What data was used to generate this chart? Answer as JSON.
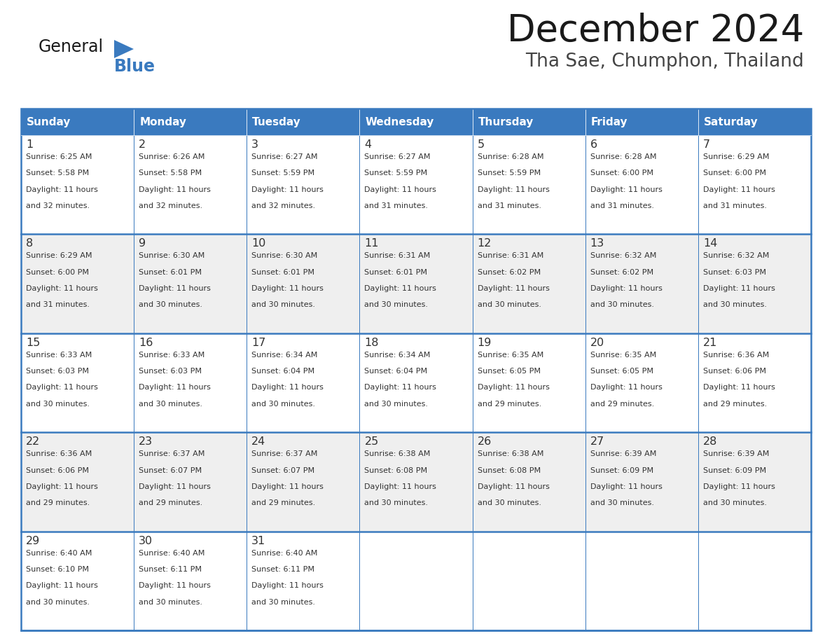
{
  "title": "December 2024",
  "subtitle": "Tha Sae, Chumphon, Thailand",
  "days_of_week": [
    "Sunday",
    "Monday",
    "Tuesday",
    "Wednesday",
    "Thursday",
    "Friday",
    "Saturday"
  ],
  "header_bg": "#3a7abf",
  "header_text": "#ffffff",
  "cell_bg_odd": "#efefef",
  "cell_bg_even": "#ffffff",
  "cell_text": "#333333",
  "border_color": "#3a7abf",
  "title_color": "#1a1a1a",
  "subtitle_color": "#444444",
  "logo_general_color": "#1a1a1a",
  "logo_blue_color": "#3a7abf",
  "logo_triangle_color": "#3a7abf",
  "weeks": [
    [
      {
        "day": 1,
        "sunrise": "6:25 AM",
        "sunset": "5:58 PM",
        "daylight": "11 hours and 32 minutes."
      },
      {
        "day": 2,
        "sunrise": "6:26 AM",
        "sunset": "5:58 PM",
        "daylight": "11 hours and 32 minutes."
      },
      {
        "day": 3,
        "sunrise": "6:27 AM",
        "sunset": "5:59 PM",
        "daylight": "11 hours and 32 minutes."
      },
      {
        "day": 4,
        "sunrise": "6:27 AM",
        "sunset": "5:59 PM",
        "daylight": "11 hours and 31 minutes."
      },
      {
        "day": 5,
        "sunrise": "6:28 AM",
        "sunset": "5:59 PM",
        "daylight": "11 hours and 31 minutes."
      },
      {
        "day": 6,
        "sunrise": "6:28 AM",
        "sunset": "6:00 PM",
        "daylight": "11 hours and 31 minutes."
      },
      {
        "day": 7,
        "sunrise": "6:29 AM",
        "sunset": "6:00 PM",
        "daylight": "11 hours and 31 minutes."
      }
    ],
    [
      {
        "day": 8,
        "sunrise": "6:29 AM",
        "sunset": "6:00 PM",
        "daylight": "11 hours and 31 minutes."
      },
      {
        "day": 9,
        "sunrise": "6:30 AM",
        "sunset": "6:01 PM",
        "daylight": "11 hours and 30 minutes."
      },
      {
        "day": 10,
        "sunrise": "6:30 AM",
        "sunset": "6:01 PM",
        "daylight": "11 hours and 30 minutes."
      },
      {
        "day": 11,
        "sunrise": "6:31 AM",
        "sunset": "6:01 PM",
        "daylight": "11 hours and 30 minutes."
      },
      {
        "day": 12,
        "sunrise": "6:31 AM",
        "sunset": "6:02 PM",
        "daylight": "11 hours and 30 minutes."
      },
      {
        "day": 13,
        "sunrise": "6:32 AM",
        "sunset": "6:02 PM",
        "daylight": "11 hours and 30 minutes."
      },
      {
        "day": 14,
        "sunrise": "6:32 AM",
        "sunset": "6:03 PM",
        "daylight": "11 hours and 30 minutes."
      }
    ],
    [
      {
        "day": 15,
        "sunrise": "6:33 AM",
        "sunset": "6:03 PM",
        "daylight": "11 hours and 30 minutes."
      },
      {
        "day": 16,
        "sunrise": "6:33 AM",
        "sunset": "6:03 PM",
        "daylight": "11 hours and 30 minutes."
      },
      {
        "day": 17,
        "sunrise": "6:34 AM",
        "sunset": "6:04 PM",
        "daylight": "11 hours and 30 minutes."
      },
      {
        "day": 18,
        "sunrise": "6:34 AM",
        "sunset": "6:04 PM",
        "daylight": "11 hours and 30 minutes."
      },
      {
        "day": 19,
        "sunrise": "6:35 AM",
        "sunset": "6:05 PM",
        "daylight": "11 hours and 29 minutes."
      },
      {
        "day": 20,
        "sunrise": "6:35 AM",
        "sunset": "6:05 PM",
        "daylight": "11 hours and 29 minutes."
      },
      {
        "day": 21,
        "sunrise": "6:36 AM",
        "sunset": "6:06 PM",
        "daylight": "11 hours and 29 minutes."
      }
    ],
    [
      {
        "day": 22,
        "sunrise": "6:36 AM",
        "sunset": "6:06 PM",
        "daylight": "11 hours and 29 minutes."
      },
      {
        "day": 23,
        "sunrise": "6:37 AM",
        "sunset": "6:07 PM",
        "daylight": "11 hours and 29 minutes."
      },
      {
        "day": 24,
        "sunrise": "6:37 AM",
        "sunset": "6:07 PM",
        "daylight": "11 hours and 29 minutes."
      },
      {
        "day": 25,
        "sunrise": "6:38 AM",
        "sunset": "6:08 PM",
        "daylight": "11 hours and 30 minutes."
      },
      {
        "day": 26,
        "sunrise": "6:38 AM",
        "sunset": "6:08 PM",
        "daylight": "11 hours and 30 minutes."
      },
      {
        "day": 27,
        "sunrise": "6:39 AM",
        "sunset": "6:09 PM",
        "daylight": "11 hours and 30 minutes."
      },
      {
        "day": 28,
        "sunrise": "6:39 AM",
        "sunset": "6:09 PM",
        "daylight": "11 hours and 30 minutes."
      }
    ],
    [
      {
        "day": 29,
        "sunrise": "6:40 AM",
        "sunset": "6:10 PM",
        "daylight": "11 hours and 30 minutes."
      },
      {
        "day": 30,
        "sunrise": "6:40 AM",
        "sunset": "6:11 PM",
        "daylight": "11 hours and 30 minutes."
      },
      {
        "day": 31,
        "sunrise": "6:40 AM",
        "sunset": "6:11 PM",
        "daylight": "11 hours and 30 minutes."
      },
      null,
      null,
      null,
      null
    ]
  ]
}
